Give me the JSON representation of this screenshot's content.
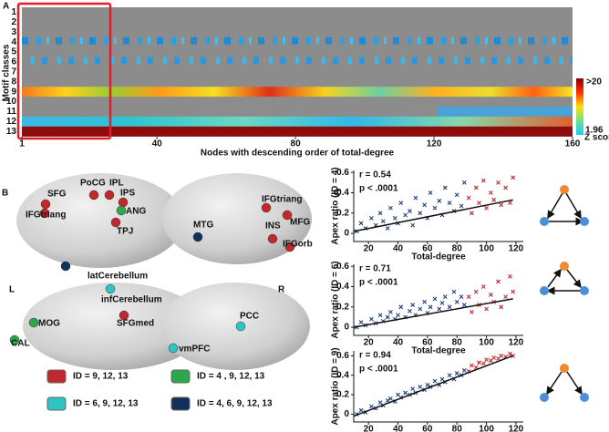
{
  "panel_a": {
    "label": "A",
    "ylabel": "Motif classes",
    "xlabel": "Nodes with descending order of total-degree",
    "rows": [
      "1",
      "2",
      "3",
      "4",
      "5",
      "6",
      "7",
      "8",
      "9",
      "10",
      "11",
      "12",
      "13"
    ],
    "xlim": [
      1,
      160
    ],
    "xticks": [
      1,
      40,
      80,
      120,
      160
    ],
    "colorbar": {
      "max": ">20",
      "min": "1.96",
      "unit": "Z score"
    }
  },
  "panel_b": {
    "label": "B",
    "left": "L",
    "right": "R",
    "labels": [
      {
        "text": "SFG",
        "color": "#c0282d"
      },
      {
        "text": "PoCG",
        "color": "#c0282d"
      },
      {
        "text": "IPL",
        "color": "#c0282d"
      },
      {
        "text": "IPS",
        "color": "#c0282d"
      },
      {
        "text": "ANG",
        "color": "#2aa84a"
      },
      {
        "text": "IFGtriang",
        "color": "#c0282d"
      },
      {
        "text": "TPJ",
        "color": "#c0282d"
      },
      {
        "text": "latCerebellum",
        "color": "#13305a"
      },
      {
        "text": "infCerebellum",
        "color": "#2ec4c4"
      },
      {
        "text": "MTG",
        "color": "#13305a"
      },
      {
        "text": "IFGtriang",
        "color": "#c0282d"
      },
      {
        "text": "INS",
        "color": "#c0282d"
      },
      {
        "text": "MFG",
        "color": "#c0282d"
      },
      {
        "text": "IFGorb",
        "color": "#c0282d"
      },
      {
        "text": "MOG",
        "color": "#2aa84a"
      },
      {
        "text": "SFGmed",
        "color": "#c0282d"
      },
      {
        "text": "CAL",
        "color": "#2aa84a"
      },
      {
        "text": "vmPFC",
        "color": "#2ec4c4"
      },
      {
        "text": "PCC",
        "color": "#2ec4c4"
      }
    ],
    "legend": [
      {
        "text": "ID = 9, 12, 13",
        "color": "#c0282d"
      },
      {
        "text": "ID = 4 , 9, 12, 13",
        "color": "#2aa84a"
      },
      {
        "text": "ID = 6, 9, 12, 13",
        "color": "#2ec4c4"
      },
      {
        "text": "ID = 4, 6, 9, 12, 13",
        "color": "#13305a"
      }
    ]
  },
  "panel_c": {
    "label": "C",
    "plots": [
      {
        "type": "scatter",
        "ylabel": "Apex ratio (ID = 4)",
        "xlabel": "Total-degree",
        "r": "r = 0.54",
        "p": "p < .0001",
        "xlim": [
          10,
          125
        ],
        "ylim": [
          -0.08,
          0.62
        ],
        "xticks": [
          20,
          40,
          60,
          80,
          100,
          120
        ],
        "yticks": [
          0,
          0.2,
          0.4,
          0.6
        ],
        "series": [
          {
            "color": "#1f3f7a",
            "x": [
              12,
              15,
              18,
              22,
              25,
              28,
              30,
              33,
              35,
              38,
              40,
              42,
              45,
              48,
              50,
              52,
              55,
              58,
              60,
              62,
              65,
              68,
              70,
              72,
              75,
              78,
              80,
              83,
              85
            ],
            "values": [
              0.02,
              0.1,
              0.05,
              0.15,
              0.08,
              0.2,
              0.12,
              0.05,
              0.25,
              0.15,
              0.1,
              0.3,
              0.18,
              0.22,
              0.08,
              0.35,
              0.2,
              0.28,
              0.15,
              0.4,
              0.25,
              0.32,
              0.18,
              0.45,
              0.3,
              0.22,
              0.38,
              0.27,
              0.5
            ]
          },
          {
            "color": "#c0282d",
            "x": [
              88,
              90,
              93,
              95,
              98,
              100,
              103,
              105,
              108,
              110,
              113,
              116,
              118
            ],
            "values": [
              0.35,
              0.2,
              0.45,
              0.3,
              0.52,
              0.25,
              0.4,
              0.33,
              0.5,
              0.28,
              0.45,
              0.3,
              0.55
            ]
          }
        ],
        "trend": {
          "x": [
            10,
            118
          ],
          "values": [
            0.02,
            0.33
          ]
        }
      },
      {
        "type": "scatter",
        "ylabel": "Apex ratio (ID = 6)",
        "xlabel": "Total-degree",
        "r": "r = 0.71",
        "p": "p < .0001",
        "xlim": [
          10,
          125
        ],
        "ylim": [
          -0.08,
          0.62
        ],
        "xticks": [
          20,
          40,
          60,
          80,
          100,
          120
        ],
        "yticks": [
          0,
          0.2,
          0.4,
          0.6
        ],
        "series": [
          {
            "color": "#1f3f7a",
            "x": [
              12,
              15,
              18,
              22,
              25,
              28,
              30,
              33,
              35,
              38,
              40,
              42,
              45,
              48,
              50,
              52,
              55,
              58,
              60,
              62,
              65,
              68,
              70,
              72,
              75,
              78,
              80,
              83,
              85
            ],
            "values": [
              0,
              0.05,
              0.02,
              0.08,
              0.04,
              0.12,
              0.06,
              0.1,
              0.15,
              0.08,
              0.12,
              0.2,
              0.1,
              0.16,
              0.22,
              0.12,
              0.18,
              0.25,
              0.14,
              0.2,
              0.28,
              0.18,
              0.24,
              0.3,
              0.2,
              0.35,
              0.25,
              0.3,
              0.22
            ]
          },
          {
            "color": "#c0282d",
            "x": [
              88,
              90,
              93,
              95,
              98,
              100,
              103,
              105,
              108,
              110,
              113,
              116,
              118
            ],
            "values": [
              0.3,
              0.15,
              0.35,
              0.22,
              0.4,
              0.18,
              0.32,
              0.25,
              0.45,
              0.2,
              0.3,
              0.5,
              0.35
            ]
          }
        ],
        "trend": {
          "x": [
            10,
            118
          ],
          "values": [
            0,
            0.28
          ]
        }
      },
      {
        "type": "scatter",
        "ylabel": "Apex ratio (ID = 9)",
        "xlabel": "Total-degree",
        "r": "r = 0.94",
        "p": "p < .0001",
        "xlim": [
          10,
          125
        ],
        "ylim": [
          -0.08,
          0.65
        ],
        "xticks": [
          20,
          40,
          60,
          80,
          100,
          120
        ],
        "yticks": [
          0,
          0.2,
          0.4,
          0.6
        ],
        "series": [
          {
            "color": "#1f3f7a",
            "x": [
              12,
              15,
              18,
              22,
              25,
              28,
              30,
              33,
              35,
              38,
              40,
              42,
              45,
              48,
              50,
              52,
              55,
              58,
              60,
              62,
              65,
              68,
              70,
              72,
              75,
              78,
              80,
              83,
              85
            ],
            "values": [
              0,
              0.04,
              0.02,
              0.08,
              0.06,
              0.12,
              0.09,
              0.14,
              0.16,
              0.13,
              0.2,
              0.17,
              0.22,
              0.2,
              0.26,
              0.22,
              0.28,
              0.25,
              0.3,
              0.28,
              0.34,
              0.3,
              0.36,
              0.33,
              0.4,
              0.36,
              0.42,
              0.4,
              0.45
            ]
          },
          {
            "color": "#c0282d",
            "x": [
              88,
              90,
              93,
              95,
              98,
              100,
              103,
              105,
              108,
              110,
              113,
              116,
              118
            ],
            "values": [
              0.44,
              0.5,
              0.48,
              0.53,
              0.52,
              0.56,
              0.55,
              0.58,
              0.57,
              0.6,
              0.59,
              0.62,
              0.6
            ]
          }
        ],
        "trend": {
          "x": [
            10,
            118
          ],
          "values": [
            -0.02,
            0.6
          ]
        }
      }
    ]
  }
}
